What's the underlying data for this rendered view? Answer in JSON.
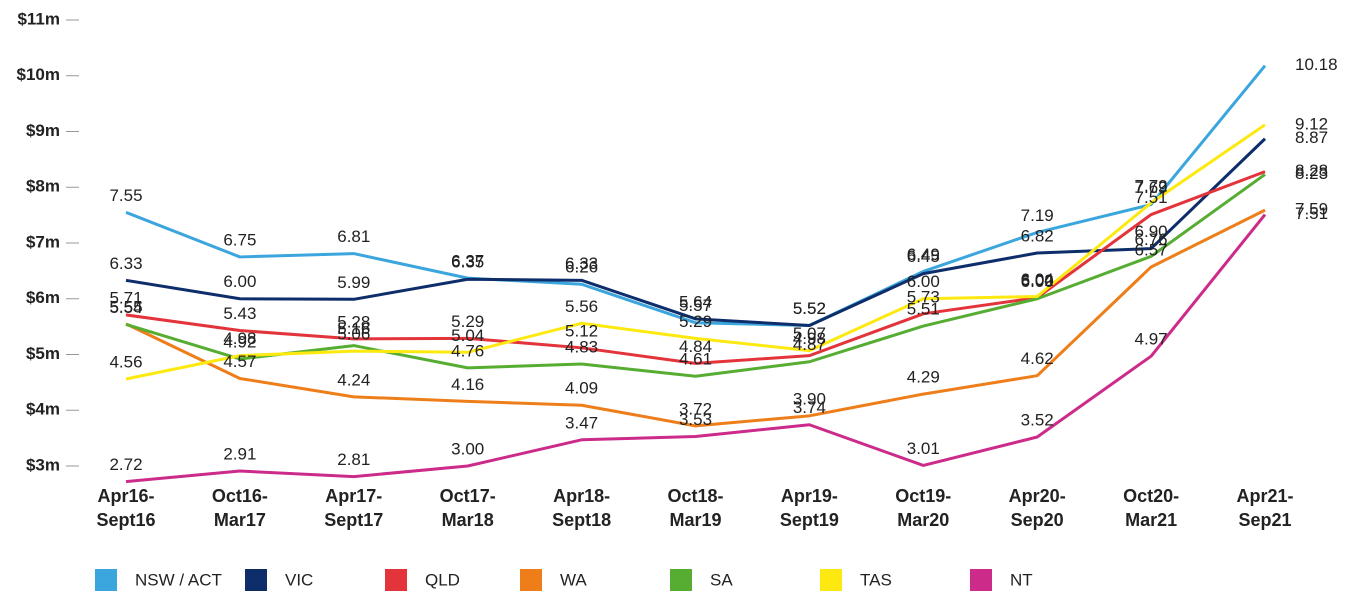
{
  "chart_data": {
    "type": "line",
    "categories": [
      "Apr16-\nSept16",
      "Oct16-\nMar17",
      "Apr17-\nSept17",
      "Oct17-\nMar18",
      "Apr18-\nSept18",
      "Oct18-\nMar19",
      "Apr19-\nSept19",
      "Oct19-\nMar20",
      "Apr20-\nSep20",
      "Oct20-\nMar21",
      "Apr21-\nSep21"
    ],
    "series": [
      {
        "name": "NSW / ACT",
        "color": "#3aa6dd",
        "values": [
          7.55,
          6.75,
          6.81,
          6.37,
          6.26,
          5.57,
          5.52,
          6.49,
          7.19,
          7.69,
          10.18
        ],
        "value_labels": [
          "7.55",
          "6.75",
          "6.81",
          "6.37",
          "6.26",
          "5.57",
          "5.52",
          "6.49",
          "7.19",
          "7.69",
          "10.18"
        ]
      },
      {
        "name": "VIC",
        "color": "#0e2d6b",
        "values": [
          6.33,
          6.0,
          5.99,
          6.35,
          6.33,
          5.64,
          5.52,
          6.45,
          6.82,
          6.9,
          8.87
        ],
        "value_labels": [
          "6.33",
          "6.00",
          "5.99",
          "6.35",
          "6.33",
          "5.64",
          "5.52",
          "6.45",
          "6.82",
          "6.90",
          "8.87"
        ]
      },
      {
        "name": "QLD",
        "color": "#e3343b",
        "values": [
          5.71,
          5.43,
          5.28,
          5.29,
          5.12,
          4.84,
          4.98,
          5.73,
          6.02,
          7.51,
          8.28
        ],
        "value_labels": [
          "5.71",
          "5.43",
          "5.28",
          "5.29",
          "5.12",
          "4.84",
          "4.98",
          "5.73",
          "6.02",
          "7.51",
          "8.28"
        ]
      },
      {
        "name": "WA",
        "color": "#ee7e1a",
        "values": [
          5.55,
          4.57,
          4.24,
          4.16,
          4.09,
          3.72,
          3.9,
          4.29,
          4.62,
          6.57,
          7.59
        ],
        "value_labels": [
          "5.55",
          "4.57",
          "4.24",
          "4.16",
          "4.09",
          "3.72",
          "3.90",
          "4.29",
          "4.62",
          "6.57",
          "7.59"
        ]
      },
      {
        "name": "SA",
        "color": "#56ad32",
        "values": [
          5.54,
          4.92,
          5.16,
          4.76,
          4.83,
          4.61,
          4.87,
          5.51,
          6.0,
          6.76,
          8.23
        ],
        "value_labels": [
          "5.54",
          "4.92",
          "5.16",
          "4.76",
          "4.83",
          "4.61",
          "4.87",
          "5.51",
          "6.00",
          "6.76",
          "8.23"
        ]
      },
      {
        "name": "TAS",
        "color": "#fde910",
        "values": [
          4.56,
          4.98,
          5.06,
          5.04,
          5.56,
          5.29,
          5.07,
          6.0,
          6.04,
          7.72,
          9.12
        ],
        "value_labels": [
          "4.56",
          "4.98",
          "5.06",
          "5.04",
          "5.56",
          "5.29",
          "5.07",
          "6.00",
          "6.04",
          "7.72",
          "9.12"
        ]
      },
      {
        "name": "NT",
        "color": "#cc2b8a",
        "values": [
          2.72,
          2.91,
          2.81,
          3.0,
          3.47,
          3.53,
          3.74,
          3.01,
          3.52,
          4.97,
          7.51
        ],
        "value_labels": [
          "2.72",
          "2.91",
          "2.81",
          "3.00",
          "3.47",
          "3.53",
          "3.74",
          "3.01",
          "3.52",
          "4.97",
          "7.51"
        ]
      }
    ],
    "ylim": [
      3,
      11
    ],
    "yticks": [
      {
        "value": 3,
        "label": "$3m"
      },
      {
        "value": 4,
        "label": "$4m"
      },
      {
        "value": 5,
        "label": "$5m"
      },
      {
        "value": 6,
        "label": "$6m"
      },
      {
        "value": 7,
        "label": "$7m"
      },
      {
        "value": 8,
        "label": "$8m"
      },
      {
        "value": 9,
        "label": "$9m"
      },
      {
        "value": 10,
        "label": "$10m"
      },
      {
        "value": 11,
        "label": "$11m"
      }
    ],
    "legend": "bottom"
  }
}
